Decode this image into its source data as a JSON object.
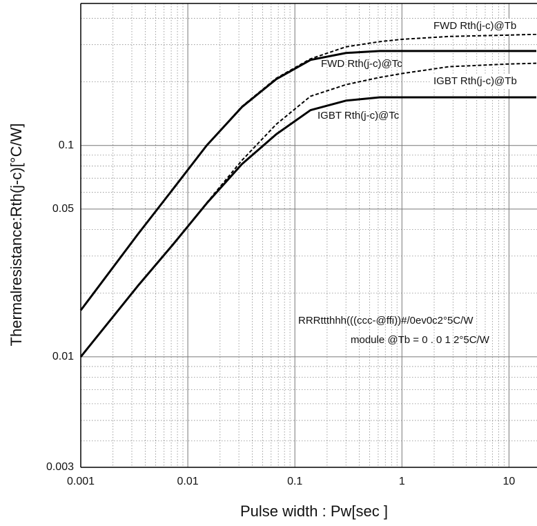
{
  "chart_data": {
    "type": "line",
    "x_label": "Pulse width  :  Pw[sec    ]",
    "y_label": "Thermalresistance:Rth(j-c)[°C/W]",
    "xscale": "log",
    "yscale": "log",
    "xlim": [
      0.001,
      18
    ],
    "ylim": [
      0.003,
      0.47
    ],
    "xticks": [
      0.001,
      0.01,
      0.1,
      1,
      10
    ],
    "yticks": [
      0.003,
      0.01,
      0.05,
      0.1
    ],
    "xminorticks": [
      0.002,
      0.003,
      0.004,
      0.005,
      0.006,
      0.007,
      0.008,
      0.009,
      0.02,
      0.03,
      0.04,
      0.05,
      0.06,
      0.07,
      0.08,
      0.09,
      0.2,
      0.3,
      0.4,
      0.5,
      0.6,
      0.7,
      0.8,
      0.9,
      2,
      3,
      4,
      5,
      6,
      7,
      8,
      9
    ],
    "yminorticks": [
      0.004,
      0.005,
      0.006,
      0.007,
      0.008,
      0.009,
      0.02,
      0.03,
      0.04,
      0.06,
      0.07,
      0.08,
      0.09,
      0.2,
      0.3,
      0.4
    ],
    "grid": true,
    "x": [
      0.001,
      0.0034,
      0.0072,
      0.015,
      0.032,
      0.067,
      0.14,
      0.3,
      0.62,
      1,
      2.75,
      10,
      18
    ],
    "series": [
      {
        "color": "#000000",
        "style": "solid",
        "values": [
          0.0166,
          0.0379,
          0.0618,
          0.1,
          0.152,
          0.206,
          0.254,
          0.274,
          0.28,
          0.28,
          0.28,
          0.28,
          0.28
        ]
      },
      {
        "color": "#000000",
        "style": "dashed",
        "values": [
          0.0166,
          0.0379,
          0.0618,
          0.1,
          0.153,
          0.208,
          0.257,
          0.293,
          0.31,
          0.318,
          0.328,
          0.333,
          0.336
        ]
      },
      {
        "color": "#000000",
        "style": "solid",
        "values": [
          0.01,
          0.0216,
          0.0338,
          0.0532,
          0.0816,
          0.113,
          0.147,
          0.163,
          0.169,
          0.169,
          0.169,
          0.169,
          0.169
        ]
      },
      {
        "color": "#000000",
        "style": "dashed",
        "values": [
          0.01,
          0.0216,
          0.0338,
          0.0535,
          0.085,
          0.126,
          0.171,
          0.194,
          0.21,
          0.219,
          0.236,
          0.243,
          0.245
        ]
      }
    ],
    "annotations": [
      "FWD Rth(j-c)@Tb",
      "FWD Rth(j-c)@Tc",
      "IGBT Rth(j-c)@Tb",
      "IGBT Rth(j-c)@Tc",
      "RRRttthhh(((ccc-@ffi))#/0ev0c2°5C/W",
      "module @Tb = 0 . 0 1 2°5C/W"
    ]
  }
}
